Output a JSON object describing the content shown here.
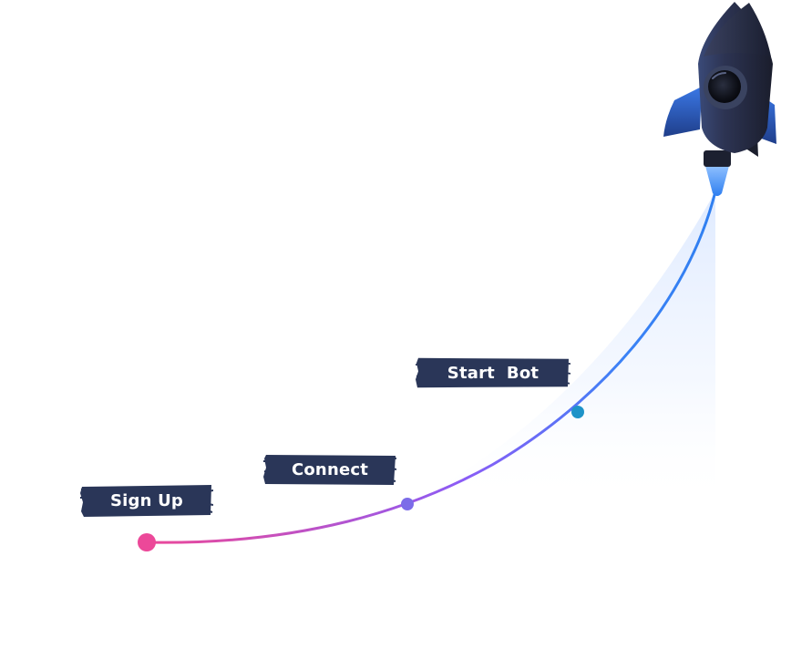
{
  "steps": [
    {
      "label": "Sign Up",
      "color": "#ec4899"
    },
    {
      "label": "Connect",
      "color": "#7c6ce8"
    },
    {
      "label": "Start  Bot",
      "color": "#1e93c8"
    }
  ],
  "colors": {
    "label_background": "#2a3658",
    "curve_start": "#ec4899",
    "curve_mid": "#8b5cf6",
    "curve_end": "#2f7ff0",
    "rocket_body": "#2b3045",
    "rocket_flame": "#3b8cff"
  },
  "icons": {
    "rocket": "rocket-icon"
  }
}
